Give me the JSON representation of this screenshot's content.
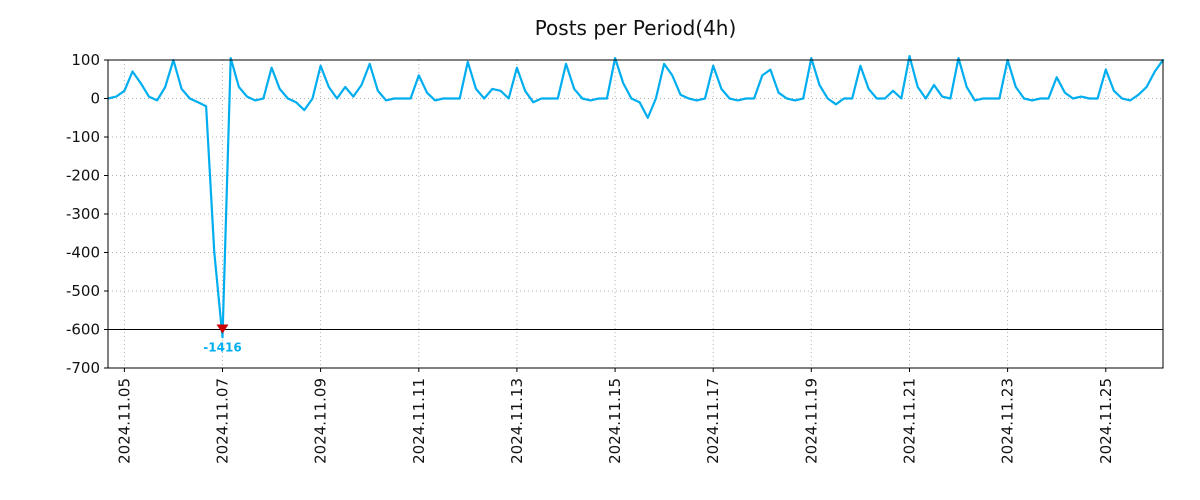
{
  "chart_data": {
    "type": "line",
    "title": "Posts per Period(4h)",
    "line_color": "#00AEEF",
    "line_width": 2.2,
    "background": "#ffffff",
    "grid": {
      "show": true,
      "style": "dotted",
      "color": "#b3b3b3"
    },
    "legend": "none",
    "ylim": [
      -700,
      100
    ],
    "clip_min": -620,
    "yticks": [
      100,
      0,
      -100,
      -200,
      -300,
      -400,
      -500,
      -600,
      -700
    ],
    "hline": {
      "y": -600,
      "color": "#000000"
    },
    "x_unit": "4h periods",
    "x_start": "2024.11.04 16:00",
    "step_hours": 4,
    "xticks": [
      {
        "label": "2024.11.05",
        "i": 2
      },
      {
        "label": "2024.11.07",
        "i": 14
      },
      {
        "label": "2024.11.09",
        "i": 26
      },
      {
        "label": "2024.11.11",
        "i": 38
      },
      {
        "label": "2024.11.13",
        "i": 50
      },
      {
        "label": "2024.11.15",
        "i": 62
      },
      {
        "label": "2024.11.17",
        "i": 74
      },
      {
        "label": "2024.11.19",
        "i": 86
      },
      {
        "label": "2024.11.21",
        "i": 98
      },
      {
        "label": "2024.11.23",
        "i": 110
      },
      {
        "label": "2024.11.25",
        "i": 122
      }
    ],
    "values": [
      0,
      5,
      20,
      70,
      40,
      5,
      -5,
      30,
      100,
      25,
      0,
      -10,
      -20,
      -400,
      -1416,
      105,
      30,
      5,
      -5,
      0,
      80,
      25,
      0,
      -10,
      -30,
      0,
      85,
      30,
      0,
      30,
      5,
      35,
      90,
      20,
      -5,
      0,
      0,
      0,
      60,
      15,
      -5,
      0,
      0,
      0,
      95,
      25,
      0,
      25,
      20,
      0,
      80,
      20,
      -10,
      0,
      0,
      0,
      90,
      25,
      0,
      -5,
      0,
      0,
      105,
      40,
      0,
      -10,
      -50,
      0,
      90,
      60,
      10,
      0,
      -5,
      0,
      85,
      25,
      0,
      -5,
      0,
      0,
      60,
      75,
      15,
      0,
      -5,
      0,
      105,
      35,
      0,
      -15,
      0,
      0,
      85,
      25,
      0,
      0,
      20,
      0,
      110,
      30,
      0,
      35,
      5,
      0,
      105,
      30,
      -5,
      0,
      0,
      0,
      100,
      30,
      0,
      -5,
      0,
      0,
      55,
      15,
      0,
      5,
      0,
      0,
      75,
      20,
      0,
      -5,
      10,
      30,
      70,
      100
    ],
    "annotation": {
      "text": "-1416",
      "value": -1416,
      "i": 14,
      "marker_y": -600,
      "marker": "red-triangle-down",
      "marker_color": "#cc0000",
      "text_color": "#00AEEF"
    }
  }
}
